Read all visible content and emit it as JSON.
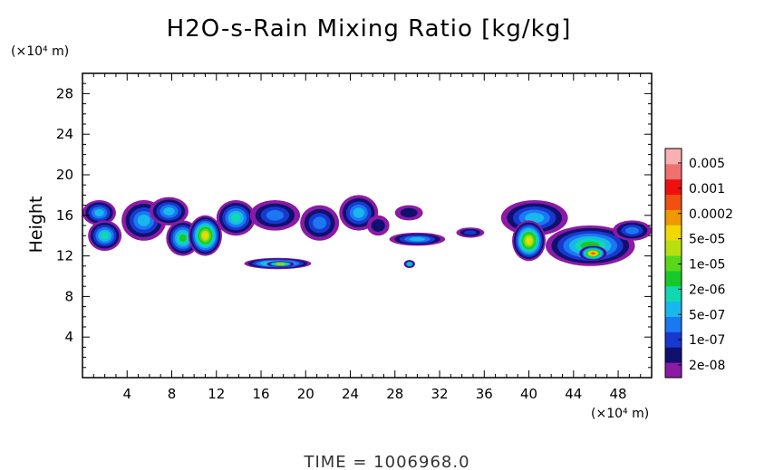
{
  "chart_data": {
    "type": "heatmap",
    "title": "H2O-s-Rain Mixing Ratio [kg/kg]",
    "ylabel": "Height",
    "xunit": "(×10⁴ m)",
    "yunit": "(×10⁴ m)",
    "xlim": [
      0,
      51
    ],
    "ylim": [
      0,
      30
    ],
    "xticks": [
      "4",
      "8",
      "12",
      "16",
      "20",
      "24",
      "28",
      "32",
      "36",
      "40",
      "44",
      "48"
    ],
    "xtick_values": [
      4,
      8,
      12,
      16,
      20,
      24,
      28,
      32,
      36,
      40,
      44,
      48
    ],
    "yticks": [
      "4",
      "8",
      "12",
      "16",
      "20",
      "24",
      "28"
    ],
    "ytick_values": [
      4,
      8,
      12,
      16,
      20,
      24,
      28
    ],
    "time_label": "TIME  =  1006968.0",
    "colorbar": {
      "labels": [
        "0.005",
        "0.001",
        "0.0002",
        "5e-05",
        "1e-05",
        "2e-06",
        "5e-07",
        "1e-07",
        "2e-08"
      ],
      "colors": [
        "#8c1aa6",
        "#10106e",
        "#1838d0",
        "#1a78f0",
        "#18b8ee",
        "#10d8b0",
        "#18c828",
        "#58d818",
        "#b8e010",
        "#f0d800",
        "#f09800",
        "#f05010",
        "#ee1010",
        "#f07070",
        "#f8b0b0"
      ]
    },
    "cloud_regions": [
      {
        "x": [
          0.0,
          3.0
        ],
        "y": [
          15.0,
          17.5
        ],
        "level": 4
      },
      {
        "x": [
          0.5,
          3.5
        ],
        "y": [
          12.5,
          15.5
        ],
        "level": 5
      },
      {
        "x": [
          3.5,
          7.5
        ],
        "y": [
          13.5,
          17.5
        ],
        "level": 4
      },
      {
        "x": [
          6.0,
          9.5
        ],
        "y": [
          15.0,
          17.8
        ],
        "level": 4
      },
      {
        "x": [
          7.5,
          10.5
        ],
        "y": [
          12.0,
          15.5
        ],
        "level": 6
      },
      {
        "x": [
          9.5,
          12.5
        ],
        "y": [
          12.0,
          16.0
        ],
        "level": 9
      },
      {
        "x": [
          12.0,
          15.5
        ],
        "y": [
          14.0,
          17.5
        ],
        "level": 5
      },
      {
        "x": [
          15.0,
          19.5
        ],
        "y": [
          14.5,
          17.5
        ],
        "level": 3
      },
      {
        "x": [
          19.5,
          23.0
        ],
        "y": [
          13.5,
          17.0
        ],
        "level": 3
      },
      {
        "x": [
          23.0,
          26.5
        ],
        "y": [
          14.5,
          18.0
        ],
        "level": 4
      },
      {
        "x": [
          25.5,
          27.5
        ],
        "y": [
          14.0,
          16.0
        ],
        "level": 1
      },
      {
        "x": [
          28.0,
          30.5
        ],
        "y": [
          15.5,
          17.0
        ],
        "level": 1
      },
      {
        "x": [
          27.5,
          32.5
        ],
        "y": [
          13.0,
          14.3
        ],
        "level": 4
      },
      {
        "x": [
          14.5,
          20.5
        ],
        "y": [
          10.7,
          11.8
        ],
        "level": 7
      },
      {
        "x": [
          16.5,
          19.0
        ],
        "y": [
          10.9,
          11.5
        ],
        "level": 10
      },
      {
        "x": [
          28.8,
          29.8
        ],
        "y": [
          10.8,
          11.6
        ],
        "level": 6
      },
      {
        "x": [
          33.5,
          36.0
        ],
        "y": [
          13.8,
          14.8
        ],
        "level": 2
      },
      {
        "x": [
          37.5,
          43.5
        ],
        "y": [
          14.0,
          17.5
        ],
        "level": 4
      },
      {
        "x": [
          38.5,
          41.5
        ],
        "y": [
          11.5,
          15.5
        ],
        "level": 9
      },
      {
        "x": [
          41.5,
          49.5
        ],
        "y": [
          11.0,
          15.0
        ],
        "level": 6
      },
      {
        "x": [
          44.5,
          47.0
        ],
        "y": [
          11.5,
          13.0
        ],
        "level": 11
      },
      {
        "x": [
          47.5,
          51.0
        ],
        "y": [
          13.5,
          15.5
        ],
        "level": 3
      }
    ]
  }
}
